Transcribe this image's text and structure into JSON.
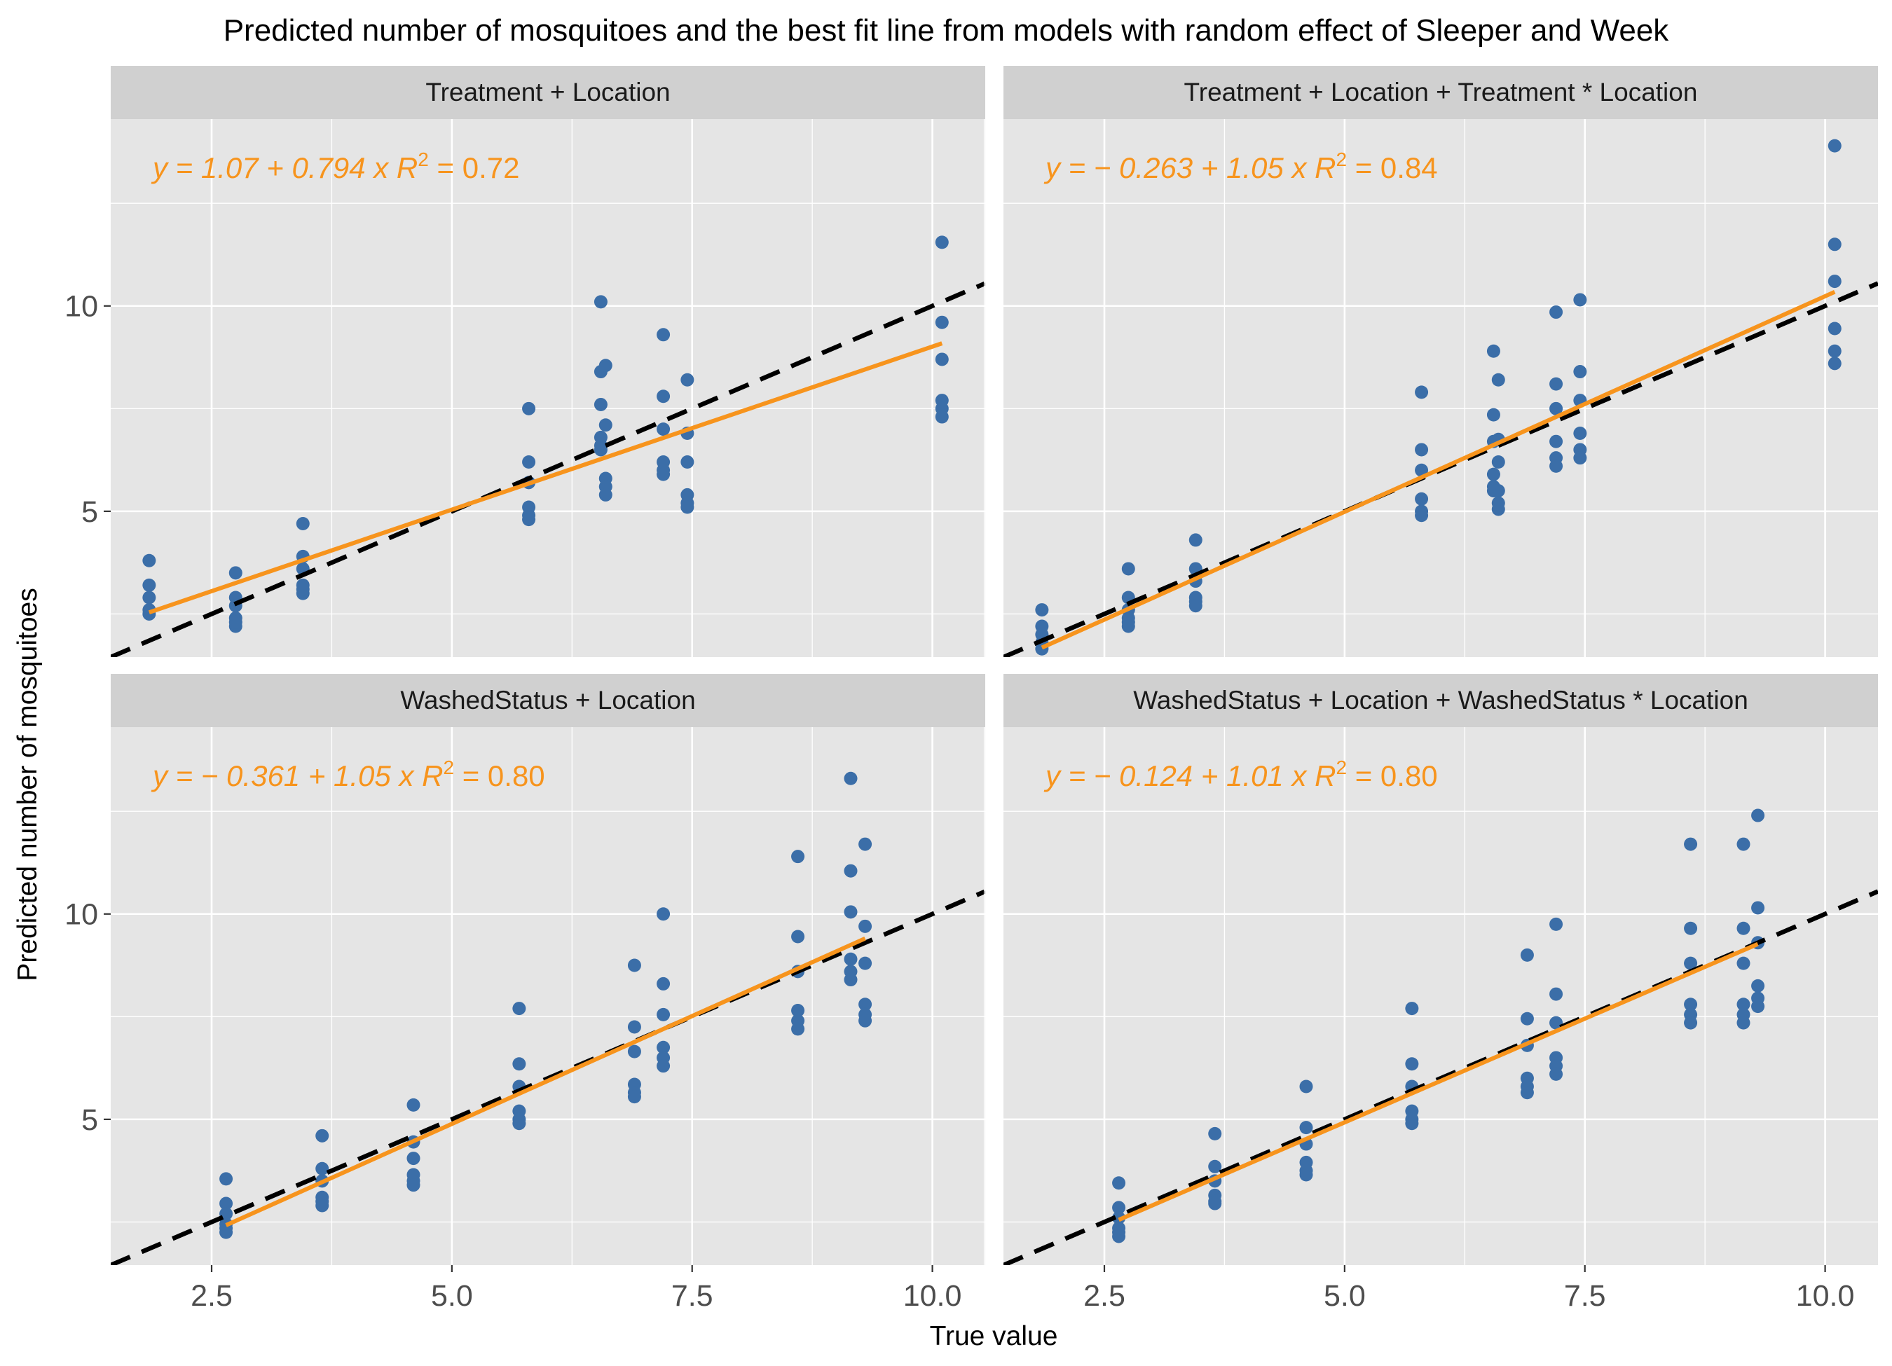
{
  "chart_data": {
    "type": "scatter",
    "title": "Predicted number of mosquitoes and the best fit line from models with random effect of Sleeper and Week",
    "xlabel": "True value",
    "ylabel": "Predicted number of mosquitoes",
    "xlim": [
      1.45,
      10.55
    ],
    "ylim": [
      1.45,
      14.55
    ],
    "x_ticks": [
      2.5,
      5.0,
      7.5,
      10.0
    ],
    "x_tick_labels": [
      "2.5",
      "5.0",
      "7.5",
      "10.0"
    ],
    "y_ticks": [
      5,
      10
    ],
    "y_tick_labels": [
      "5",
      "10"
    ],
    "grid": true,
    "colors": {
      "points": "#3b6ea8",
      "fit_line": "#f7941d",
      "reference_line": "#000000",
      "panel_background": "#e5e5e5",
      "strip_background": "#d0d0d0",
      "grid": "#ffffff"
    },
    "panels": [
      {
        "strip": "Treatment + Location",
        "equation": "y = 1.07 + 0.794 x",
        "r2_label": "R",
        "r2_value": " = 0.72",
        "fit": {
          "intercept": 1.07,
          "slope": 0.794,
          "x_range": [
            1.85,
            10.1
          ]
        },
        "points": [
          [
            1.85,
            3.8
          ],
          [
            1.85,
            3.2
          ],
          [
            1.85,
            2.9
          ],
          [
            1.85,
            2.6
          ],
          [
            1.85,
            2.5
          ],
          [
            2.75,
            3.5
          ],
          [
            2.75,
            2.9
          ],
          [
            2.75,
            2.7
          ],
          [
            2.75,
            2.4
          ],
          [
            2.75,
            2.2
          ],
          [
            2.75,
            2.3
          ],
          [
            3.45,
            4.7
          ],
          [
            3.45,
            3.9
          ],
          [
            3.45,
            3.6
          ],
          [
            3.45,
            3.2
          ],
          [
            3.45,
            3.0
          ],
          [
            3.45,
            3.1
          ],
          [
            5.8,
            7.5
          ],
          [
            5.8,
            6.2
          ],
          [
            5.8,
            5.7
          ],
          [
            5.8,
            5.1
          ],
          [
            5.8,
            4.9
          ],
          [
            5.8,
            4.8
          ],
          [
            6.55,
            10.1
          ],
          [
            6.55,
            8.4
          ],
          [
            6.55,
            7.6
          ],
          [
            6.55,
            6.8
          ],
          [
            6.55,
            6.6
          ],
          [
            6.55,
            6.5
          ],
          [
            6.6,
            8.55
          ],
          [
            6.6,
            7.1
          ],
          [
            6.6,
            5.8
          ],
          [
            6.6,
            5.6
          ],
          [
            6.6,
            5.4
          ],
          [
            7.2,
            9.3
          ],
          [
            7.2,
            7.8
          ],
          [
            7.2,
            7.0
          ],
          [
            7.2,
            6.2
          ],
          [
            7.2,
            6.0
          ],
          [
            7.2,
            5.9
          ],
          [
            7.45,
            8.2
          ],
          [
            7.45,
            6.9
          ],
          [
            7.45,
            6.2
          ],
          [
            7.45,
            5.4
          ],
          [
            7.45,
            5.2
          ],
          [
            7.45,
            5.1
          ],
          [
            10.1,
            11.55
          ],
          [
            10.1,
            9.6
          ],
          [
            10.1,
            8.7
          ],
          [
            10.1,
            7.7
          ],
          [
            10.1,
            7.5
          ],
          [
            10.1,
            7.3
          ]
        ]
      },
      {
        "strip": "Treatment + Location + Treatment * Location",
        "equation": "y = − 0.263 + 1.05 x",
        "r2_label": "R",
        "r2_value": " = 0.84",
        "fit": {
          "intercept": -0.263,
          "slope": 1.05,
          "x_range": [
            1.85,
            10.1
          ]
        },
        "points": [
          [
            1.85,
            2.6
          ],
          [
            1.85,
            2.2
          ],
          [
            1.85,
            2.0
          ],
          [
            1.85,
            1.8
          ],
          [
            1.85,
            1.65
          ],
          [
            2.75,
            3.6
          ],
          [
            2.75,
            2.9
          ],
          [
            2.75,
            2.6
          ],
          [
            2.75,
            2.4
          ],
          [
            2.75,
            2.3
          ],
          [
            2.75,
            2.2
          ],
          [
            3.45,
            4.3
          ],
          [
            3.45,
            3.6
          ],
          [
            3.45,
            3.3
          ],
          [
            3.45,
            2.9
          ],
          [
            3.45,
            2.8
          ],
          [
            3.45,
            2.7
          ],
          [
            5.8,
            7.9
          ],
          [
            5.8,
            6.5
          ],
          [
            5.8,
            6.0
          ],
          [
            5.8,
            5.3
          ],
          [
            5.8,
            5.0
          ],
          [
            5.8,
            4.9
          ],
          [
            6.55,
            8.9
          ],
          [
            6.55,
            7.35
          ],
          [
            6.55,
            6.7
          ],
          [
            6.55,
            5.9
          ],
          [
            6.55,
            5.6
          ],
          [
            6.55,
            5.5
          ],
          [
            6.6,
            8.2
          ],
          [
            6.6,
            6.75
          ],
          [
            6.6,
            6.2
          ],
          [
            6.6,
            5.5
          ],
          [
            6.6,
            5.2
          ],
          [
            6.6,
            5.05
          ],
          [
            7.2,
            9.85
          ],
          [
            7.2,
            8.1
          ],
          [
            7.2,
            7.5
          ],
          [
            7.2,
            6.7
          ],
          [
            7.2,
            6.3
          ],
          [
            7.2,
            6.1
          ],
          [
            7.45,
            10.15
          ],
          [
            7.45,
            8.4
          ],
          [
            7.45,
            7.7
          ],
          [
            7.45,
            6.9
          ],
          [
            7.45,
            6.5
          ],
          [
            7.45,
            6.3
          ],
          [
            10.1,
            13.9
          ],
          [
            10.1,
            11.5
          ],
          [
            10.1,
            10.6
          ],
          [
            10.1,
            9.45
          ],
          [
            10.1,
            8.9
          ],
          [
            10.1,
            8.6
          ]
        ]
      },
      {
        "strip": "WashedStatus + Location",
        "equation": "y = − 0.361 + 1.05 x",
        "r2_label": "R",
        "r2_value": " = 0.80",
        "fit": {
          "intercept": -0.361,
          "slope": 1.05,
          "x_range": [
            2.65,
            9.3
          ]
        },
        "points": [
          [
            2.65,
            3.55
          ],
          [
            2.65,
            2.95
          ],
          [
            2.65,
            2.7
          ],
          [
            2.65,
            2.45
          ],
          [
            2.65,
            2.35
          ],
          [
            2.65,
            2.25
          ],
          [
            3.65,
            4.6
          ],
          [
            3.65,
            3.8
          ],
          [
            3.65,
            3.5
          ],
          [
            3.65,
            3.1
          ],
          [
            3.65,
            3.0
          ],
          [
            3.65,
            2.9
          ],
          [
            4.6,
            5.35
          ],
          [
            4.6,
            4.45
          ],
          [
            4.6,
            4.05
          ],
          [
            4.6,
            3.65
          ],
          [
            4.6,
            3.5
          ],
          [
            4.6,
            3.4
          ],
          [
            5.7,
            7.7
          ],
          [
            5.7,
            6.35
          ],
          [
            5.7,
            5.8
          ],
          [
            5.7,
            5.2
          ],
          [
            5.7,
            5.0
          ],
          [
            5.7,
            4.9
          ],
          [
            6.9,
            8.75
          ],
          [
            6.9,
            7.25
          ],
          [
            6.9,
            6.65
          ],
          [
            6.9,
            5.85
          ],
          [
            6.9,
            5.65
          ],
          [
            6.9,
            5.55
          ],
          [
            7.2,
            10.0
          ],
          [
            7.2,
            8.3
          ],
          [
            7.2,
            7.55
          ],
          [
            7.2,
            6.75
          ],
          [
            7.2,
            6.5
          ],
          [
            7.2,
            6.3
          ],
          [
            8.6,
            11.4
          ],
          [
            8.6,
            9.45
          ],
          [
            8.6,
            8.6
          ],
          [
            8.6,
            7.65
          ],
          [
            8.6,
            7.4
          ],
          [
            8.6,
            7.2
          ],
          [
            9.15,
            13.3
          ],
          [
            9.15,
            11.05
          ],
          [
            9.15,
            10.05
          ],
          [
            9.15,
            8.9
          ],
          [
            9.15,
            8.6
          ],
          [
            9.15,
            8.4
          ],
          [
            9.3,
            11.7
          ],
          [
            9.3,
            9.7
          ],
          [
            9.3,
            8.8
          ],
          [
            9.3,
            7.8
          ],
          [
            9.3,
            7.55
          ],
          [
            9.3,
            7.4
          ]
        ]
      },
      {
        "strip": "WashedStatus + Location + WashedStatus * Location",
        "equation": "y = − 0.124 + 1.01 x",
        "r2_label": "R",
        "r2_value": " = 0.80",
        "fit": {
          "intercept": -0.124,
          "slope": 1.01,
          "x_range": [
            2.65,
            9.3
          ]
        },
        "points": [
          [
            2.65,
            3.45
          ],
          [
            2.65,
            2.85
          ],
          [
            2.65,
            2.6
          ],
          [
            2.65,
            2.35
          ],
          [
            2.65,
            2.25
          ],
          [
            2.65,
            2.15
          ],
          [
            3.65,
            4.65
          ],
          [
            3.65,
            3.85
          ],
          [
            3.65,
            3.5
          ],
          [
            3.65,
            3.15
          ],
          [
            3.65,
            3.0
          ],
          [
            3.65,
            2.95
          ],
          [
            4.6,
            5.8
          ],
          [
            4.6,
            4.8
          ],
          [
            4.6,
            4.4
          ],
          [
            4.6,
            3.95
          ],
          [
            4.6,
            3.75
          ],
          [
            4.6,
            3.65
          ],
          [
            5.7,
            7.7
          ],
          [
            5.7,
            6.35
          ],
          [
            5.7,
            5.8
          ],
          [
            5.7,
            5.2
          ],
          [
            5.7,
            5.0
          ],
          [
            5.7,
            4.9
          ],
          [
            6.9,
            9.0
          ],
          [
            6.9,
            7.45
          ],
          [
            6.9,
            6.8
          ],
          [
            6.9,
            6.0
          ],
          [
            6.9,
            5.8
          ],
          [
            6.9,
            5.65
          ],
          [
            7.2,
            9.75
          ],
          [
            7.2,
            8.05
          ],
          [
            7.2,
            7.35
          ],
          [
            7.2,
            6.5
          ],
          [
            7.2,
            6.3
          ],
          [
            7.2,
            6.1
          ],
          [
            8.6,
            11.7
          ],
          [
            8.6,
            9.65
          ],
          [
            8.6,
            8.8
          ],
          [
            8.6,
            7.8
          ],
          [
            8.6,
            7.55
          ],
          [
            8.6,
            7.35
          ],
          [
            9.15,
            11.7
          ],
          [
            9.15,
            9.65
          ],
          [
            9.15,
            8.8
          ],
          [
            9.15,
            7.8
          ],
          [
            9.15,
            7.55
          ],
          [
            9.15,
            7.35
          ],
          [
            9.3,
            12.4
          ],
          [
            9.3,
            10.15
          ],
          [
            9.3,
            9.3
          ],
          [
            9.3,
            8.25
          ],
          [
            9.3,
            7.95
          ],
          [
            9.3,
            7.75
          ]
        ]
      }
    ]
  }
}
